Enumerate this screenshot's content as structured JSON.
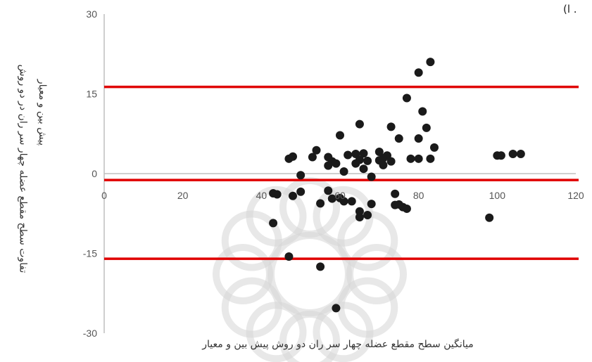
{
  "corner_mark": "(ا .",
  "chart_data": {
    "type": "scatter",
    "title": "",
    "xlabel": "میانگین سطح مقطع عضله چهار سر ران دو روش پیش بین و معیار",
    "ylabel_line1": "تفاوت سطح مقطع عضله چهار سر ران در دو روش",
    "ylabel_line2": "پیش بین و معیار",
    "xlim": [
      0,
      120
    ],
    "ylim": [
      -30,
      30
    ],
    "x_ticks": [
      0,
      20,
      40,
      60,
      80,
      100,
      120
    ],
    "y_ticks": [
      -30,
      -15,
      0,
      15,
      30
    ],
    "x_tick_labels": [
      "0",
      "20",
      "40",
      "60",
      "80",
      "100",
      "120"
    ],
    "y_tick_labels": [
      "-30",
      "-15",
      "0",
      "15",
      "30"
    ],
    "reference_lines": [
      16.3,
      -1.2,
      -16.0
    ],
    "grid": false,
    "colors": {
      "points": "#1a1a1a",
      "lines": "#e00000",
      "axis": "#bfbfbf",
      "watermark": "#d6d6d6"
    },
    "points": [
      [
        83,
        21
      ],
      [
        80,
        19
      ],
      [
        77,
        14.2
      ],
      [
        81,
        11.7
      ],
      [
        82,
        8.6
      ],
      [
        73,
        8.8
      ],
      [
        65,
        9.3
      ],
      [
        75,
        6.6
      ],
      [
        80,
        6.6
      ],
      [
        84,
        4.9
      ],
      [
        60,
        7.2
      ],
      [
        57,
        3.1
      ],
      [
        58,
        2.3
      ],
      [
        57,
        1.5
      ],
      [
        59,
        1.9
      ],
      [
        61,
        0.4
      ],
      [
        64,
        3.7
      ],
      [
        62,
        3.5
      ],
      [
        66,
        3.8
      ],
      [
        67,
        2.4
      ],
      [
        65,
        2.6
      ],
      [
        66,
        0.9
      ],
      [
        68,
        -0.6
      ],
      [
        64,
        1.9
      ],
      [
        70,
        4.1
      ],
      [
        71,
        2.9
      ],
      [
        72,
        3.4
      ],
      [
        73,
        2.3
      ],
      [
        71,
        1.6
      ],
      [
        70,
        2.5
      ],
      [
        78,
        2.8
      ],
      [
        80,
        2.8
      ],
      [
        83,
        2.8
      ],
      [
        53,
        3.1
      ],
      [
        54,
        4.4
      ],
      [
        47,
        2.8
      ],
      [
        48,
        3.2
      ],
      [
        100,
        3.4
      ],
      [
        101,
        3.4
      ],
      [
        104,
        3.7
      ],
      [
        106,
        3.7
      ],
      [
        50,
        -0.3
      ],
      [
        43,
        -3.7
      ],
      [
        44,
        -3.9
      ],
      [
        48,
        -4.2
      ],
      [
        50,
        -3.4
      ],
      [
        57,
        -3.2
      ],
      [
        58,
        -4.7
      ],
      [
        61,
        -5.2
      ],
      [
        60,
        -4.6
      ],
      [
        63,
        -5.2
      ],
      [
        55,
        -5.6
      ],
      [
        65,
        -7.1
      ],
      [
        65,
        -8.2
      ],
      [
        67,
        -7.8
      ],
      [
        68,
        -5.7
      ],
      [
        74,
        -5.9
      ],
      [
        75,
        -5.8
      ],
      [
        76,
        -6.3
      ],
      [
        77,
        -6.6
      ],
      [
        43,
        -9.3
      ],
      [
        98,
        -8.3
      ],
      [
        47,
        -15.6
      ],
      [
        55,
        -17.5
      ],
      [
        59,
        -25.3
      ],
      [
        74,
        -3.8
      ]
    ]
  }
}
